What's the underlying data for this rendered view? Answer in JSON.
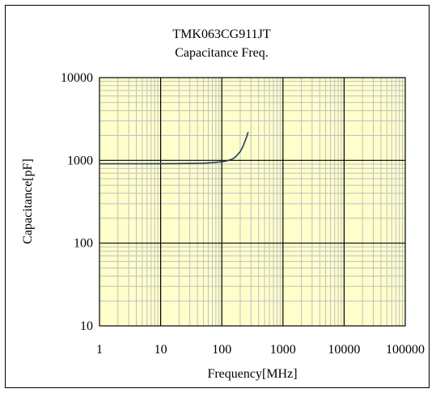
{
  "chart_data": {
    "type": "line",
    "title": "TMK063CG911JT",
    "subtitle": "Capacitance Freq.",
    "xlabel": "Frequency[MHz]",
    "ylabel": "Capacitance[pF]",
    "xscale": "log",
    "yscale": "log",
    "xlim": [
      1,
      100000
    ],
    "ylim": [
      10,
      10000
    ],
    "x_ticks": [
      "1",
      "10",
      "100",
      "1000",
      "10000",
      "100000"
    ],
    "y_ticks": [
      "10",
      "100",
      "1000",
      "10000"
    ],
    "grid": true,
    "legend": "none",
    "colors": {
      "plot_bg": "#FFFFCC",
      "minor_grid": "#BFBFBF",
      "major_grid": "#000000",
      "series": "#1F3F5F"
    },
    "series": [
      {
        "x": [
          1,
          2,
          5,
          10,
          20,
          50,
          70,
          100,
          120,
          150,
          170,
          200,
          220,
          250,
          270
        ],
        "y": [
          910,
          910,
          911,
          912,
          914,
          925,
          937,
          960,
          985,
          1040,
          1110,
          1280,
          1450,
          1850,
          2200
        ]
      }
    ]
  }
}
